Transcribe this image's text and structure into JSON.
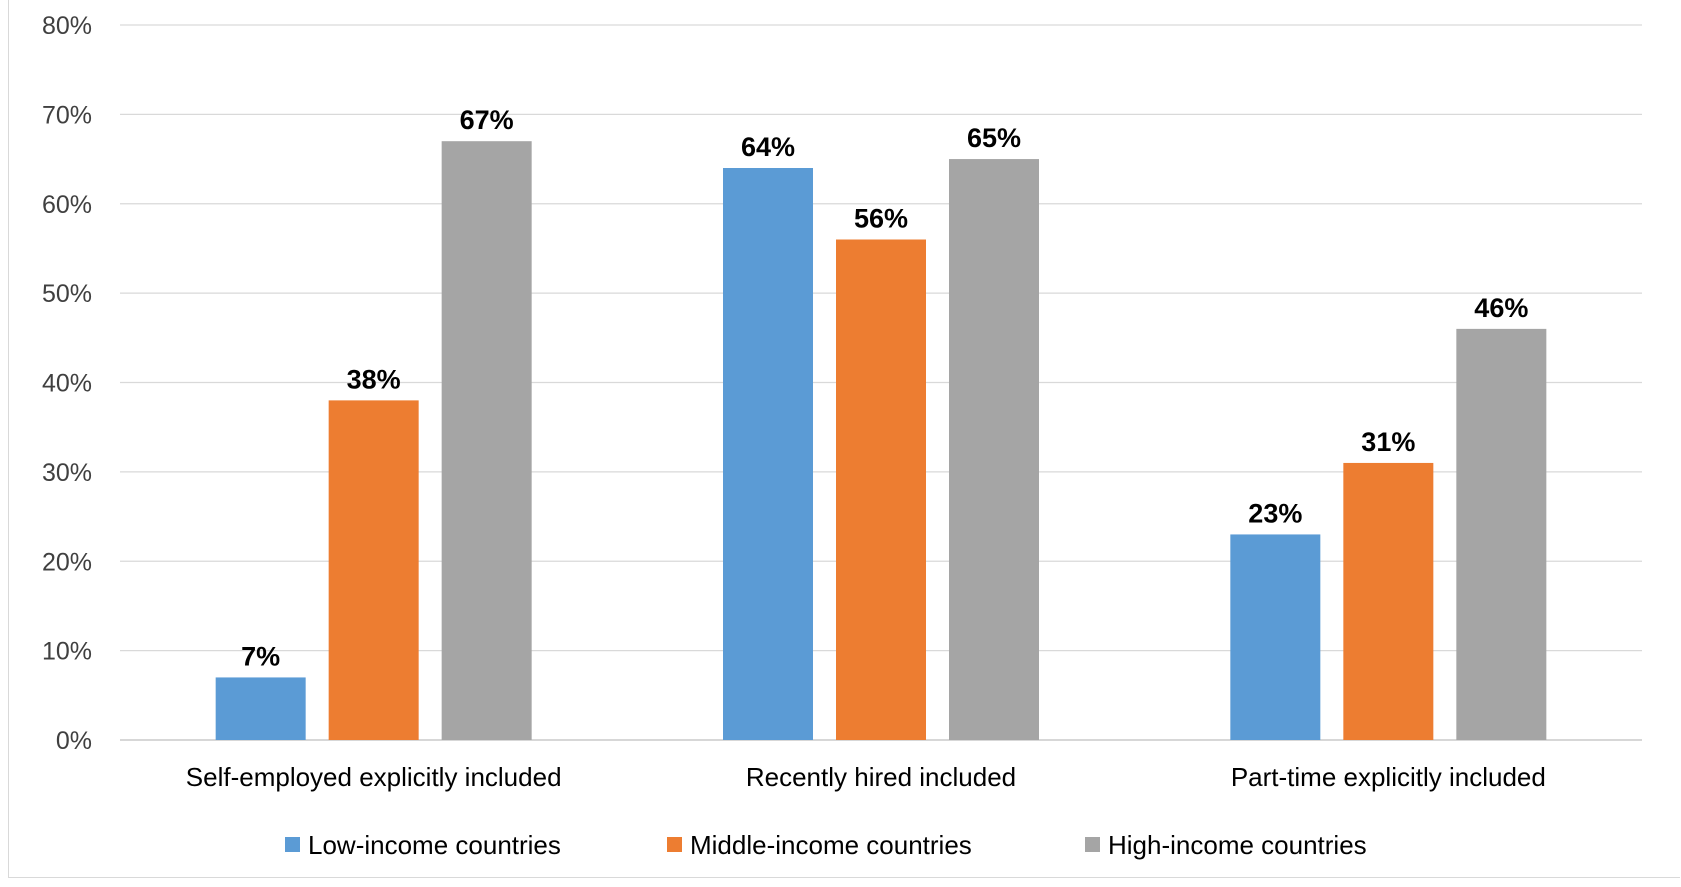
{
  "chart_data": {
    "type": "bar",
    "title": "",
    "xlabel": "",
    "ylabel": "",
    "ylim": [
      0,
      80
    ],
    "yticks": [
      0,
      10,
      20,
      30,
      40,
      50,
      60,
      70,
      80
    ],
    "ytick_labels": [
      "0%",
      "10%",
      "20%",
      "30%",
      "40%",
      "50%",
      "60%",
      "70%",
      "80%"
    ],
    "grid": true,
    "legend_position": "bottom",
    "categories": [
      "Self-employed explicitly included",
      "Recently hired included",
      "Part-time explicitly included"
    ],
    "series": [
      {
        "name": "Low-income countries",
        "color": "#5b9bd5",
        "values": [
          7,
          64,
          23
        ],
        "labels": [
          "7%",
          "64%",
          "23%"
        ]
      },
      {
        "name": "Middle-income countries",
        "color": "#ed7d31",
        "values": [
          38,
          56,
          31
        ],
        "labels": [
          "38%",
          "56%",
          "31%"
        ]
      },
      {
        "name": "High-income countries",
        "color": "#a5a5a5",
        "values": [
          67,
          65,
          46
        ],
        "labels": [
          "67%",
          "65%",
          "46%"
        ]
      }
    ]
  }
}
